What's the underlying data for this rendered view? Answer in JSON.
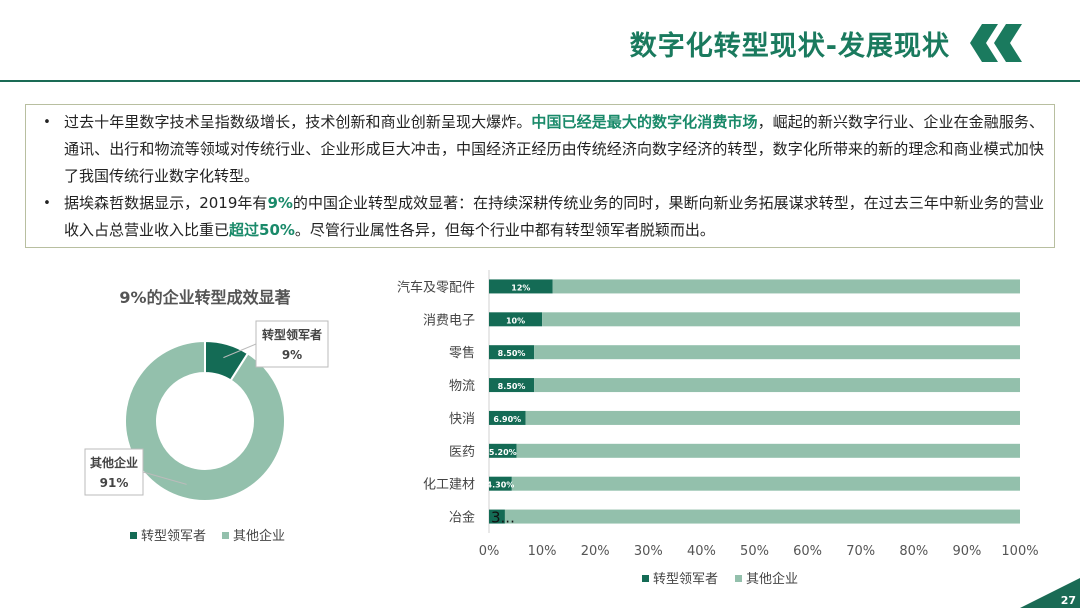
{
  "header": {
    "title": "数字化转型现状-发展现状"
  },
  "body_text": {
    "p1_a": "过去十年里数字技术呈指数级增长，技术创新和商业创新呈现大爆炸。",
    "p1_hl": "中国已经是最大的数字化消费市场",
    "p1_b": "，崛起的新兴数字行业、企业在金融服务、通讯、出行和物流等领域对传统行业、企业形成巨大冲击，中国经济正经历由传统经济向数字经济的转型，数字化所带来的新的理念和商业模式加快了我国传统行业数字化转型。",
    "p2_a": "据埃森哲数据显示，2019年有",
    "p2_hl1": "9%",
    "p2_b": "的中国企业转型成效显著：在持续深耕传统业务的同时，果断向新业务拓展谋求转型，在过去三年中新业务的营业收入占总营业收入比重已",
    "p2_hl2": "超过50%",
    "p2_c": "。尽管行业属性各异，但每个行业中都有转型领军者脱颖而出。"
  },
  "colors": {
    "leader": "#146b55",
    "other": "#93c0ac",
    "accent_text": "#1a8a6a"
  },
  "page_number": "27",
  "chart_data": [
    {
      "type": "pie",
      "variant": "donut",
      "title": "9%的企业转型成效显著",
      "slices": [
        {
          "label": "转型领军者",
          "value": 9,
          "display": "9%"
        },
        {
          "label": "其他企业",
          "value": 91,
          "display": "91%"
        }
      ],
      "legend": [
        "转型领军者",
        "其他企业"
      ],
      "legend_position": "bottom"
    },
    {
      "type": "bar",
      "orientation": "horizontal",
      "stacked": "percent",
      "categories": [
        "汽车及零配件",
        "消费电子",
        "零售",
        "物流",
        "快消",
        "医药",
        "化工建材",
        "冶金"
      ],
      "series": [
        {
          "name": "转型领军者",
          "values": [
            12,
            10,
            8.5,
            8.5,
            6.9,
            5.2,
            4.3,
            3
          ]
        },
        {
          "name": "其他企业",
          "values": [
            88,
            90,
            91.5,
            91.5,
            93.1,
            94.8,
            95.7,
            97
          ]
        }
      ],
      "data_labels": [
        "12%",
        "10%",
        "8.50%",
        "8.50%",
        "6.90%",
        "5.20%",
        "4.30%",
        "3..."
      ],
      "x_ticks": [
        "0%",
        "10%",
        "20%",
        "30%",
        "40%",
        "50%",
        "60%",
        "70%",
        "80%",
        "90%",
        "100%"
      ],
      "xlim": [
        0,
        100
      ],
      "grid": false,
      "legend_position": "bottom"
    }
  ]
}
